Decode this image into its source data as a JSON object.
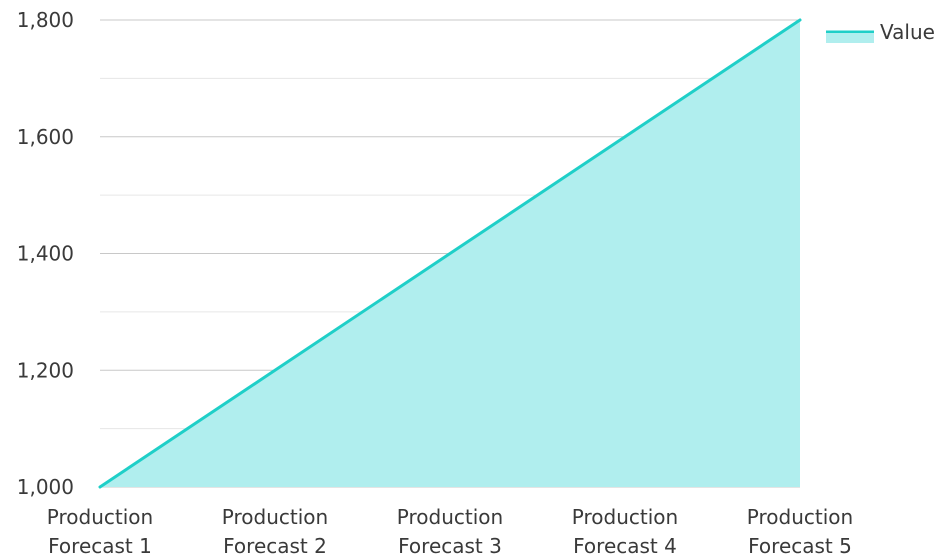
{
  "chart_data": {
    "type": "area",
    "title": "",
    "xlabel": "",
    "ylabel": "",
    "categories": [
      "Production Forecast 1",
      "Production Forecast 2",
      "Production Forecast 3",
      "Production Forecast 4",
      "Production Forecast 5"
    ],
    "category_lines": [
      [
        "Production",
        "Forecast 1"
      ],
      [
        "Production",
        "Forecast 2"
      ],
      [
        "Production",
        "Forecast 3"
      ],
      [
        "Production",
        "Forecast 4"
      ],
      [
        "Production",
        "Forecast 5"
      ]
    ],
    "series": [
      {
        "name": "Value",
        "values": [
          1000,
          1200,
          1400,
          1600,
          1800
        ],
        "color": "#1fcfc8",
        "fill": "#b0eeee"
      }
    ],
    "ylim": [
      1000,
      1800
    ],
    "y_ticks": [
      1000,
      1200,
      1400,
      1600,
      1800
    ],
    "y_tick_labels": [
      "1,000",
      "1,200",
      "1,400",
      "1,600",
      "1,800"
    ],
    "minor_gridlines": true,
    "grid": true,
    "legend_position": "top-right"
  }
}
